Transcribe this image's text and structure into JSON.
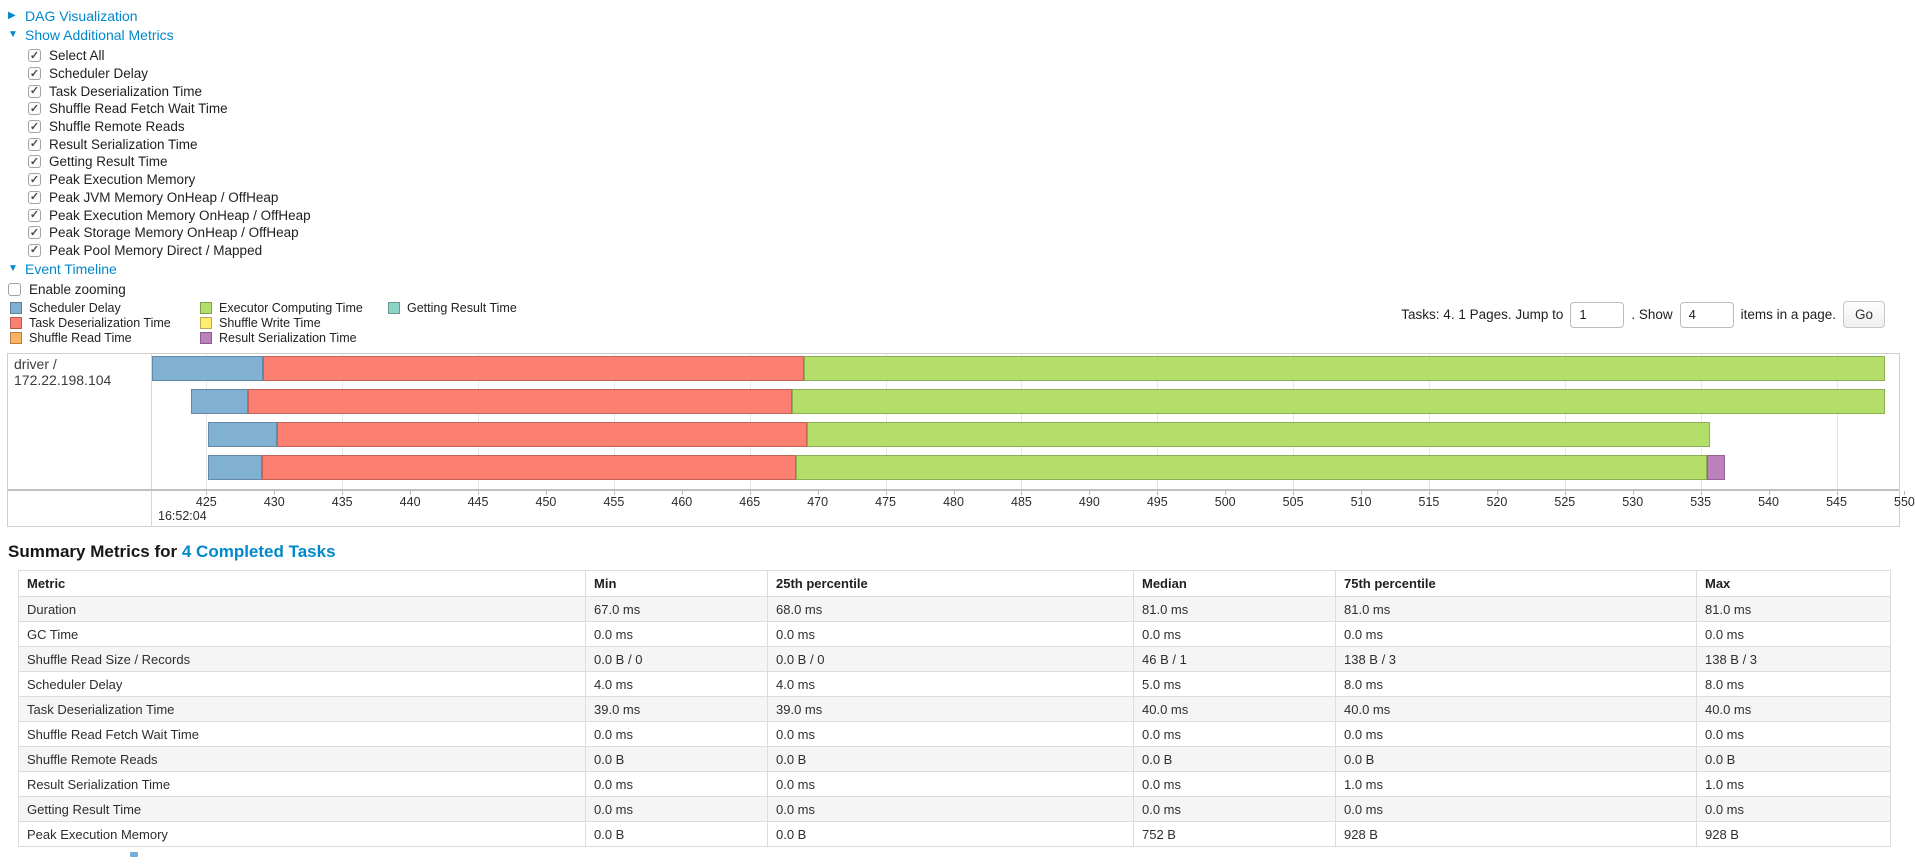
{
  "colors": {
    "link": "#0088cc"
  },
  "icons": {
    "caret_right": "▶",
    "caret_down": "▼",
    "check": "✓"
  },
  "links": {
    "dag": "DAG Visualization",
    "show_metrics": "Show Additional Metrics",
    "event_timeline": "Event Timeline"
  },
  "metric_checkboxes": [
    {
      "label": "Select All",
      "checked": true
    },
    {
      "label": "Scheduler Delay",
      "checked": true
    },
    {
      "label": "Task Deserialization Time",
      "checked": true
    },
    {
      "label": "Shuffle Read Fetch Wait Time",
      "checked": true
    },
    {
      "label": "Shuffle Remote Reads",
      "checked": true
    },
    {
      "label": "Result Serialization Time",
      "checked": true
    },
    {
      "label": "Getting Result Time",
      "checked": true
    },
    {
      "label": "Peak Execution Memory",
      "checked": true
    },
    {
      "label": "Peak JVM Memory OnHeap / OffHeap",
      "checked": true
    },
    {
      "label": "Peak Execution Memory OnHeap / OffHeap",
      "checked": true
    },
    {
      "label": "Peak Storage Memory OnHeap / OffHeap",
      "checked": true
    },
    {
      "label": "Peak Pool Memory Direct / Mapped",
      "checked": true
    }
  ],
  "enable_zooming": {
    "label": "Enable zooming",
    "checked": false
  },
  "pagination": {
    "text_before": "Tasks: 4. 1 Pages. Jump to",
    "jump_value": "1",
    "text_mid": ". Show",
    "show_value": "4",
    "text_after": "items in a page.",
    "go_label": "Go"
  },
  "chart_data": {
    "type": "timeline",
    "executor_label": "driver / 172.22.198.104",
    "legend_columns": [
      [
        {
          "label": "Scheduler Delay",
          "color": "#80B1D3"
        },
        {
          "label": "Task Deserialization Time",
          "color": "#FB8072"
        },
        {
          "label": "Shuffle Read Time",
          "color": "#FDB462"
        }
      ],
      [
        {
          "label": "Executor Computing Time",
          "color": "#B3DE69"
        },
        {
          "label": "Shuffle Write Time",
          "color": "#FFED6F"
        },
        {
          "label": "Result Serialization Time",
          "color": "#BC80BD"
        }
      ],
      [
        {
          "label": "Getting Result Time",
          "color": "#8DD3C7"
        }
      ]
    ],
    "axis": {
      "window_start": 421,
      "window_end": 549.6,
      "tick_values": [
        425,
        430,
        435,
        440,
        445,
        450,
        455,
        460,
        465,
        470,
        475,
        480,
        485,
        490,
        495,
        500,
        505,
        510,
        515,
        520,
        525,
        530,
        535,
        540,
        545,
        550
      ],
      "gridline_every_other_tick": true,
      "major_label": "16:52:04",
      "units": "ms within second 16:52:04"
    },
    "tasks": [
      {
        "segments": [
          {
            "name": "scheduler-delay",
            "color": "#80B1D3",
            "start": 421.0,
            "end": 429.2
          },
          {
            "name": "task-deserialization-time",
            "color": "#FB8072",
            "start": 429.2,
            "end": 469.0
          },
          {
            "name": "executor-computing-time",
            "color": "#B3DE69",
            "start": 469.0,
            "end": 548.6
          }
        ]
      },
      {
        "segments": [
          {
            "name": "scheduler-delay",
            "color": "#80B1D3",
            "start": 423.9,
            "end": 428.1
          },
          {
            "name": "task-deserialization-time",
            "color": "#FB8072",
            "start": 428.1,
            "end": 468.1
          },
          {
            "name": "executor-computing-time",
            "color": "#B3DE69",
            "start": 468.1,
            "end": 548.6
          }
        ]
      },
      {
        "segments": [
          {
            "name": "scheduler-delay",
            "color": "#80B1D3",
            "start": 425.1,
            "end": 430.2
          },
          {
            "name": "task-deserialization-time",
            "color": "#FB8072",
            "start": 430.2,
            "end": 469.2
          },
          {
            "name": "executor-computing-time",
            "color": "#B3DE69",
            "start": 469.2,
            "end": 535.7
          }
        ]
      },
      {
        "segments": [
          {
            "name": "scheduler-delay",
            "color": "#80B1D3",
            "start": 425.1,
            "end": 429.1
          },
          {
            "name": "task-deserialization-time",
            "color": "#FB8072",
            "start": 429.1,
            "end": 468.4
          },
          {
            "name": "executor-computing-time",
            "color": "#B3DE69",
            "start": 468.4,
            "end": 535.5
          },
          {
            "name": "result-serialization-time",
            "color": "#BC80BD",
            "start": 535.5,
            "end": 536.8
          }
        ]
      }
    ]
  },
  "summary": {
    "title_prefix": "Summary Metrics for",
    "title_link": "4 Completed Tasks",
    "table": {
      "headers": [
        "Metric",
        "Min",
        "25th percentile",
        "Median",
        "75th percentile",
        "Max"
      ],
      "rows": [
        [
          "Duration",
          "67.0 ms",
          "68.0 ms",
          "81.0 ms",
          "81.0 ms",
          "81.0 ms"
        ],
        [
          "GC Time",
          "0.0 ms",
          "0.0 ms",
          "0.0 ms",
          "0.0 ms",
          "0.0 ms"
        ],
        [
          "Shuffle Read Size / Records",
          "0.0 B / 0",
          "0.0 B / 0",
          "46 B / 1",
          "138 B / 3",
          "138 B / 3"
        ],
        [
          "Scheduler Delay",
          "4.0 ms",
          "4.0 ms",
          "5.0 ms",
          "8.0 ms",
          "8.0 ms"
        ],
        [
          "Task Deserialization Time",
          "39.0 ms",
          "39.0 ms",
          "40.0 ms",
          "40.0 ms",
          "40.0 ms"
        ],
        [
          "Shuffle Read Fetch Wait Time",
          "0.0 ms",
          "0.0 ms",
          "0.0 ms",
          "0.0 ms",
          "0.0 ms"
        ],
        [
          "Shuffle Remote Reads",
          "0.0 B",
          "0.0 B",
          "0.0 B",
          "0.0 B",
          "0.0 B"
        ],
        [
          "Result Serialization Time",
          "0.0 ms",
          "0.0 ms",
          "0.0 ms",
          "1.0 ms",
          "1.0 ms"
        ],
        [
          "Getting Result Time",
          "0.0 ms",
          "0.0 ms",
          "0.0 ms",
          "0.0 ms",
          "0.0 ms"
        ],
        [
          "Peak Execution Memory",
          "0.0 B",
          "0.0 B",
          "752 B",
          "928 B",
          "928 B"
        ]
      ]
    }
  }
}
